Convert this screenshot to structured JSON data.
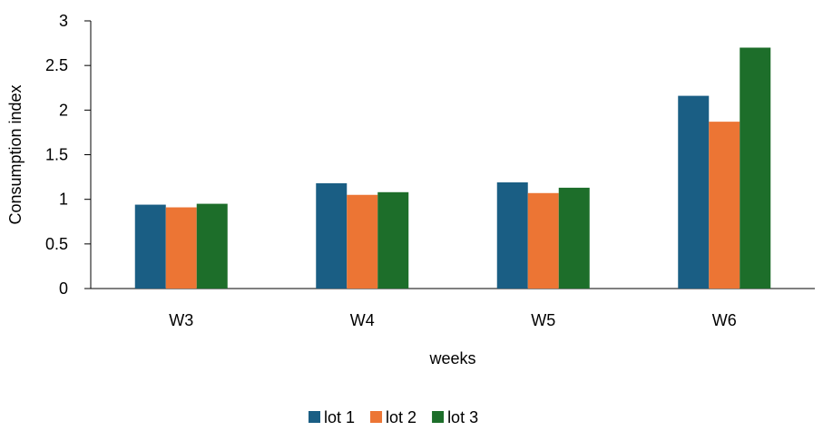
{
  "chart_data": {
    "type": "bar",
    "title": "",
    "xlabel": "weeks",
    "ylabel": "Consumption index",
    "categories": [
      "W3",
      "W4",
      "W5",
      "W6"
    ],
    "series": [
      {
        "name": "lot 1",
        "color": "#1a5e84",
        "values": [
          0.94,
          1.18,
          1.19,
          2.16
        ]
      },
      {
        "name": "lot 2",
        "color": "#ec7534",
        "values": [
          0.91,
          1.05,
          1.07,
          1.87
        ]
      },
      {
        "name": "lot 3",
        "color": "#1d6e2a",
        "values": [
          0.95,
          1.08,
          1.13,
          2.7
        ]
      }
    ],
    "ylim": [
      0,
      3
    ],
    "yticks": [
      0,
      0.5,
      1,
      1.5,
      2,
      2.5,
      3
    ],
    "ytick_labels": [
      "0",
      "0.5",
      "1",
      "1.5",
      "2",
      "2.5",
      "3"
    ],
    "grid": false,
    "legend_position": "bottom"
  }
}
